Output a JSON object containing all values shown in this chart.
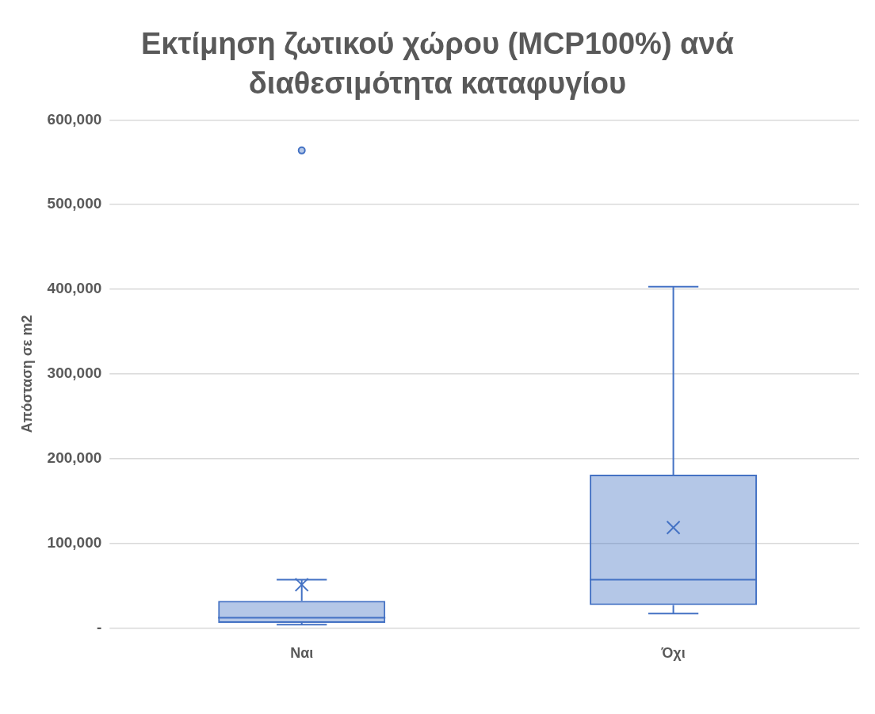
{
  "chart_data": {
    "type": "box",
    "title": "Εκτίμηση ζωτικού χώρου (MCP100%) ανά διαθεσιμότητα καταφυγίου",
    "ylabel": "Απόσταση σε m2",
    "categories": [
      "Ναι",
      "Όχι"
    ],
    "color": "#4472c4",
    "boxes": [
      {
        "low": 4000,
        "q1": 6000,
        "median": 12000,
        "q3": 32000,
        "high": 57000,
        "mean": 51000,
        "outliers": [
          564000
        ]
      },
      {
        "low": 17000,
        "q1": 27000,
        "median": 57000,
        "q3": 181000,
        "high": 403000,
        "mean": 118500
      }
    ],
    "ylim": [
      0,
      600000
    ],
    "yticks": [
      {
        "value": 0,
        "label": "-"
      },
      {
        "value": 100000,
        "label": "100,000"
      },
      {
        "value": 200000,
        "label": "200,000"
      },
      {
        "value": 300000,
        "label": "300,000"
      },
      {
        "value": 400000,
        "label": "400,000"
      },
      {
        "value": 500000,
        "label": "500,000"
      },
      {
        "value": 600000,
        "label": "600,000"
      }
    ],
    "grid": "y"
  }
}
